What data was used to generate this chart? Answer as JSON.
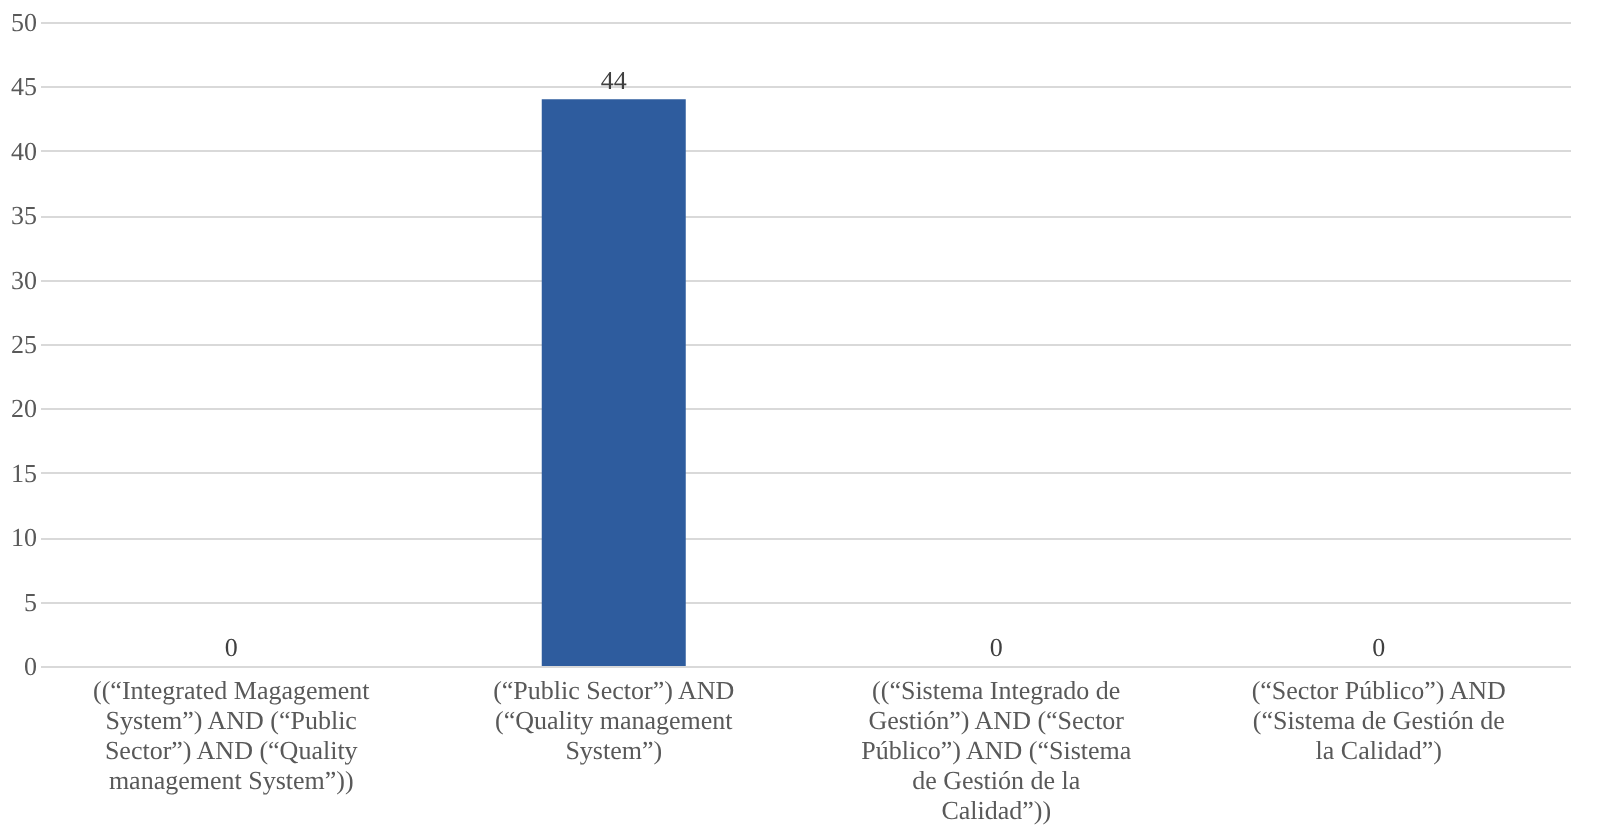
{
  "chart_data": {
    "type": "bar",
    "categories": [
      "((“Integrated Magagement System”) AND (“Public Sector”) AND (“Quality management System”))",
      "(“Public Sector”) AND (“Quality management System”)",
      "((“Sistema Integrado de Gestión”) AND (“Sector Público”) AND (“Sistema de Gestión de la Calidad”))",
      "(“Sector Público”) AND (“Sistema de Gestión de la Calidad”)"
    ],
    "values": [
      0,
      44,
      0,
      0
    ],
    "color": "#2e5c9e",
    "ylim": [
      0,
      50
    ],
    "yticks": [
      0,
      5,
      10,
      15,
      20,
      25,
      30,
      35,
      40,
      45,
      50
    ],
    "grid": "y",
    "data_labels": true
  }
}
